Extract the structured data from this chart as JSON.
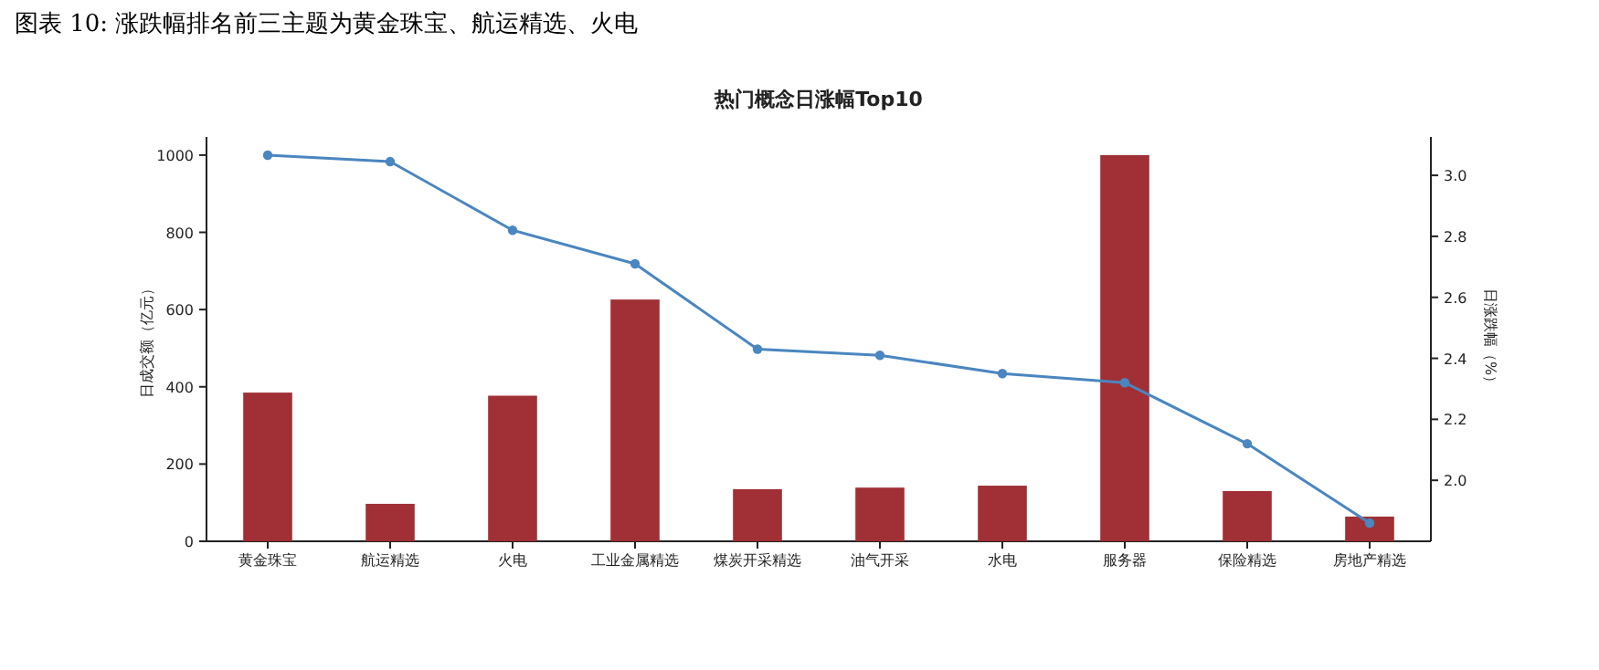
{
  "chart_data": {
    "type": "bar",
    "title": "图表 10: 涨跌幅排名前三主题为黄金珠宝、航运精选、火电",
    "subtitle": "热门概念日涨幅Top10",
    "ylabel": "日成交额（亿元）",
    "y2label": "日涨跌幅（%）",
    "categories": [
      "黄金珠宝",
      "航运精选",
      "火电",
      "工业金属精选",
      "煤炭开采精选",
      "油气开采",
      "水电",
      "服务器",
      "保险精选",
      "房地产精选"
    ],
    "series": [
      {
        "color": "#a03035",
        "values": [
          385,
          97,
          377,
          626,
          135,
          139,
          144,
          1000,
          130,
          64
        ]
      },
      {
        "type": "line",
        "axis": "y2",
        "color": "#4a86c0",
        "marker": "circle",
        "values": [
          3.066,
          3.045,
          2.82,
          2.71,
          2.43,
          2.41,
          2.35,
          2.32,
          2.12,
          1.86
        ]
      }
    ],
    "ylim": [
      0,
      1047
    ],
    "yticks": [
      0,
      200,
      400,
      600,
      800,
      1000
    ],
    "y2lim": [
      1.8,
      3.126
    ],
    "y2ticks": [
      {
        "value": 2.0,
        "label": "2.0"
      },
      {
        "value": 2.2,
        "label": "2.2"
      },
      {
        "value": 2.4,
        "label": "2.4"
      },
      {
        "value": 2.6,
        "label": "2.6"
      },
      {
        "value": 2.8,
        "label": "2.8"
      },
      {
        "value": 3.0,
        "label": "3.0"
      }
    ],
    "grid": false
  }
}
